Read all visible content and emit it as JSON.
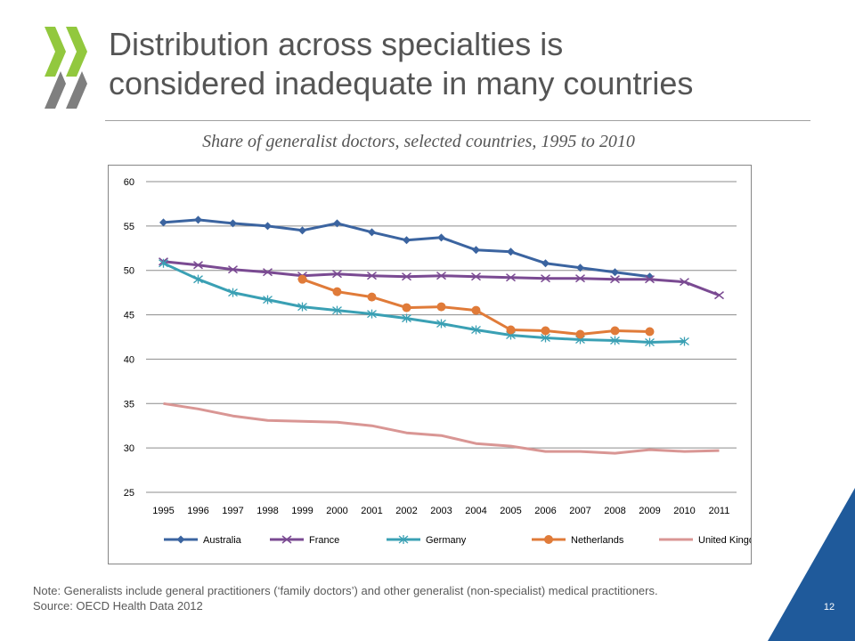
{
  "slide": {
    "title_line1": "Distribution across specialties is",
    "title_line2": "considered inadequate in many countries",
    "subtitle": "Share of generalist doctors, selected countries, 1995  to 2010",
    "note_line1": "Note:  Generalists include general practitioners (‘family doctors’) and other generalist (non-specialist) medical practitioners.",
    "source": "Source: OECD Health Data 2012",
    "page_number": "12",
    "colors": {
      "title": "#555555",
      "logo_green": "#92c83e",
      "logo_grey": "#7f7f7f",
      "corner_blue": "#1f5a9b"
    }
  },
  "chart_data": {
    "type": "line",
    "title": "",
    "xlabel": "",
    "ylabel": "",
    "x": [
      "1995",
      "1996",
      "1997",
      "1998",
      "1999",
      "2000",
      "2001",
      "2002",
      "2003",
      "2004",
      "2005",
      "2006",
      "2007",
      "2008",
      "2009",
      "2010",
      "2011"
    ],
    "ylim": [
      25,
      60
    ],
    "yticks": [
      25,
      30,
      35,
      40,
      45,
      50,
      55,
      60
    ],
    "grid": true,
    "legend_position": "bottom",
    "series": [
      {
        "name": "Australia",
        "color": "#3b64a0",
        "marker": "diamond",
        "values": [
          55.4,
          55.7,
          55.3,
          55.0,
          54.5,
          55.3,
          54.3,
          53.4,
          53.7,
          52.3,
          52.1,
          50.8,
          50.3,
          49.8,
          49.3,
          null,
          null
        ]
      },
      {
        "name": "France",
        "color": "#7a4a92",
        "marker": "x",
        "values": [
          51.0,
          50.6,
          50.1,
          49.8,
          49.4,
          49.6,
          49.4,
          49.3,
          49.4,
          49.3,
          49.2,
          49.1,
          49.1,
          49.0,
          49.0,
          48.7,
          47.2
        ]
      },
      {
        "name": "Germany",
        "color": "#3aa0b4",
        "marker": "asterisk",
        "values": [
          50.8,
          49.0,
          47.5,
          46.7,
          45.9,
          45.5,
          45.1,
          44.6,
          44.0,
          43.3,
          42.7,
          42.4,
          42.2,
          42.1,
          41.9,
          42.0,
          null
        ]
      },
      {
        "name": "Netherlands",
        "color": "#e07b39",
        "marker": "circle",
        "values": [
          null,
          null,
          null,
          null,
          49.0,
          47.6,
          47.0,
          45.8,
          45.9,
          45.5,
          43.3,
          43.2,
          42.8,
          43.2,
          43.1,
          null,
          null
        ]
      },
      {
        "name": "United Kingdom",
        "color": "#d99694",
        "marker": "none",
        "values": [
          35.0,
          34.4,
          33.6,
          33.1,
          33.0,
          32.9,
          32.5,
          31.7,
          31.4,
          30.5,
          30.2,
          29.6,
          29.6,
          29.4,
          29.8,
          29.6,
          29.7
        ]
      }
    ]
  }
}
